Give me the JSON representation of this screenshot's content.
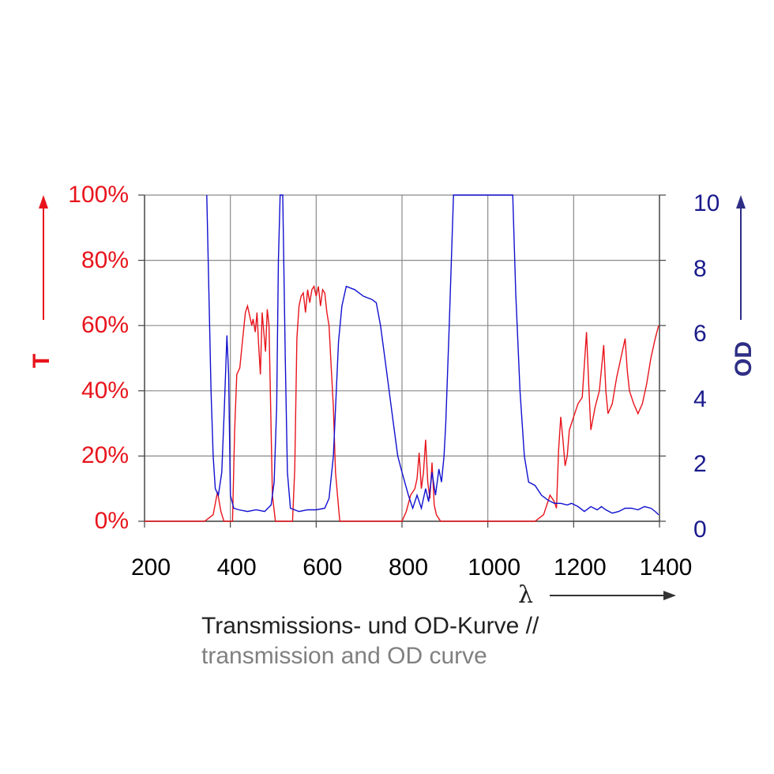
{
  "chart_data": {
    "type": "line",
    "title": "",
    "caption_de": "Transmissions- und OD-Kurve //",
    "caption_en": "transmission and OD curve",
    "xlabel": "λ",
    "ylabel_left": "T",
    "ylabel_right": "OD",
    "xlim": [
      200,
      1400
    ],
    "ylim_left": [
      0,
      100
    ],
    "ylim_right": [
      0,
      10
    ],
    "x_ticks": [
      "200",
      "400",
      "600",
      "800",
      "1000",
      "1200",
      "1400"
    ],
    "y_ticks_left": [
      "100%",
      "80%",
      "60%",
      "40%",
      "20%",
      "0%"
    ],
    "y_ticks_right": [
      "10",
      "8",
      "6",
      "4",
      "2",
      "0"
    ],
    "grid": true,
    "colors": {
      "transmission": "#e8141c",
      "od": "#1010d0",
      "left_axis": "#e8141c",
      "right_axis": "#2e2e86"
    },
    "series": [
      {
        "axis": "left",
        "points": [
          [
            200,
            0
          ],
          [
            340,
            0
          ],
          [
            360,
            2
          ],
          [
            370,
            9
          ],
          [
            378,
            3
          ],
          [
            385,
            0
          ],
          [
            405,
            0
          ],
          [
            410,
            28
          ],
          [
            415,
            45
          ],
          [
            422,
            47
          ],
          [
            428,
            55
          ],
          [
            435,
            64
          ],
          [
            440,
            66
          ],
          [
            445,
            63
          ],
          [
            450,
            60
          ],
          [
            453,
            62
          ],
          [
            458,
            58
          ],
          [
            462,
            64
          ],
          [
            466,
            54
          ],
          [
            470,
            45
          ],
          [
            474,
            64
          ],
          [
            478,
            58
          ],
          [
            482,
            52
          ],
          [
            486,
            65
          ],
          [
            490,
            60
          ],
          [
            494,
            35
          ],
          [
            498,
            8
          ],
          [
            505,
            0
          ],
          [
            545,
            0
          ],
          [
            550,
            16
          ],
          [
            555,
            56
          ],
          [
            560,
            66
          ],
          [
            565,
            69
          ],
          [
            570,
            70
          ],
          [
            575,
            64
          ],
          [
            580,
            71
          ],
          [
            585,
            67
          ],
          [
            590,
            71
          ],
          [
            595,
            72
          ],
          [
            600,
            69
          ],
          [
            605,
            72
          ],
          [
            610,
            66
          ],
          [
            615,
            71
          ],
          [
            620,
            70
          ],
          [
            625,
            64
          ],
          [
            630,
            60
          ],
          [
            635,
            47
          ],
          [
            640,
            35
          ],
          [
            645,
            15
          ],
          [
            655,
            0
          ],
          [
            800,
            0
          ],
          [
            810,
            3
          ],
          [
            820,
            8
          ],
          [
            830,
            10
          ],
          [
            835,
            13
          ],
          [
            840,
            21
          ],
          [
            845,
            10
          ],
          [
            850,
            15
          ],
          [
            855,
            25
          ],
          [
            860,
            12
          ],
          [
            865,
            7
          ],
          [
            870,
            18
          ],
          [
            875,
            5
          ],
          [
            880,
            2
          ],
          [
            890,
            0
          ],
          [
            1110,
            0
          ],
          [
            1130,
            2
          ],
          [
            1145,
            8
          ],
          [
            1155,
            6
          ],
          [
            1160,
            4
          ],
          [
            1165,
            22
          ],
          [
            1170,
            32
          ],
          [
            1175,
            25
          ],
          [
            1180,
            17
          ],
          [
            1185,
            20
          ],
          [
            1190,
            28
          ],
          [
            1195,
            30
          ],
          [
            1200,
            32
          ],
          [
            1210,
            36
          ],
          [
            1220,
            38
          ],
          [
            1230,
            58
          ],
          [
            1235,
            42
          ],
          [
            1240,
            28
          ],
          [
            1250,
            35
          ],
          [
            1260,
            40
          ],
          [
            1270,
            54
          ],
          [
            1275,
            40
          ],
          [
            1280,
            33
          ],
          [
            1290,
            36
          ],
          [
            1300,
            44
          ],
          [
            1310,
            50
          ],
          [
            1320,
            56
          ],
          [
            1325,
            46
          ],
          [
            1330,
            40
          ],
          [
            1340,
            36
          ],
          [
            1350,
            33
          ],
          [
            1360,
            36
          ],
          [
            1370,
            42
          ],
          [
            1380,
            50
          ],
          [
            1390,
            56
          ],
          [
            1398,
            60
          ]
        ]
      },
      {
        "axis": "right",
        "points": [
          [
            345,
            10
          ],
          [
            350,
            7
          ],
          [
            355,
            4
          ],
          [
            360,
            2
          ],
          [
            365,
            1
          ],
          [
            372,
            0.8
          ],
          [
            380,
            1.5
          ],
          [
            386,
            3.5
          ],
          [
            392,
            5.7
          ],
          [
            396,
            4.5
          ],
          [
            400,
            0.8
          ],
          [
            408,
            0.4
          ],
          [
            420,
            0.35
          ],
          [
            440,
            0.3
          ],
          [
            460,
            0.35
          ],
          [
            480,
            0.3
          ],
          [
            495,
            0.5
          ],
          [
            502,
            1.2
          ],
          [
            508,
            3.5
          ],
          [
            512,
            8
          ],
          [
            516,
            10
          ],
          [
            522,
            10
          ],
          [
            528,
            5
          ],
          [
            533,
            1.5
          ],
          [
            540,
            0.4
          ],
          [
            560,
            0.3
          ],
          [
            580,
            0.35
          ],
          [
            600,
            0.35
          ],
          [
            620,
            0.4
          ],
          [
            630,
            0.7
          ],
          [
            640,
            2
          ],
          [
            652,
            5.5
          ],
          [
            660,
            6.6
          ],
          [
            670,
            7.2
          ],
          [
            690,
            7.1
          ],
          [
            710,
            6.9
          ],
          [
            730,
            6.8
          ],
          [
            740,
            6.7
          ],
          [
            750,
            6
          ],
          [
            760,
            5
          ],
          [
            770,
            4
          ],
          [
            780,
            3
          ],
          [
            790,
            2
          ],
          [
            800,
            1.5
          ],
          [
            815,
            0.8
          ],
          [
            825,
            0.4
          ],
          [
            835,
            0.8
          ],
          [
            845,
            0.4
          ],
          [
            855,
            1.0
          ],
          [
            862,
            0.6
          ],
          [
            870,
            1.5
          ],
          [
            878,
            0.8
          ],
          [
            886,
            1.6
          ],
          [
            892,
            1.2
          ],
          [
            898,
            2
          ],
          [
            902,
            3
          ],
          [
            910,
            6
          ],
          [
            920,
            10
          ],
          [
            1058,
            10
          ],
          [
            1065,
            7
          ],
          [
            1075,
            4
          ],
          [
            1085,
            2
          ],
          [
            1095,
            1.2
          ],
          [
            1110,
            1.1
          ],
          [
            1125,
            0.8
          ],
          [
            1140,
            0.65
          ],
          [
            1155,
            0.55
          ],
          [
            1170,
            0.55
          ],
          [
            1185,
            0.5
          ],
          [
            1195,
            0.55
          ],
          [
            1210,
            0.45
          ],
          [
            1225,
            0.3
          ],
          [
            1240,
            0.45
          ],
          [
            1255,
            0.35
          ],
          [
            1265,
            0.45
          ],
          [
            1275,
            0.35
          ],
          [
            1290,
            0.25
          ],
          [
            1305,
            0.3
          ],
          [
            1320,
            0.4
          ],
          [
            1335,
            0.4
          ],
          [
            1350,
            0.35
          ],
          [
            1365,
            0.45
          ],
          [
            1380,
            0.4
          ],
          [
            1390,
            0.3
          ],
          [
            1398,
            0.2
          ]
        ]
      }
    ]
  }
}
